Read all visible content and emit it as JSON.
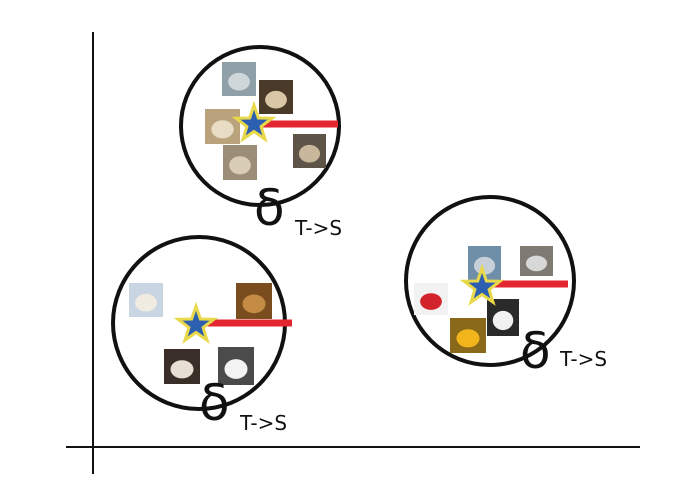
{
  "colors": {
    "background": "#ffffff",
    "axis": "#111111",
    "cluster_outline": "#111111",
    "radius_line": "#e3262f",
    "star_fill": "#2d5fb0",
    "star_outline": "#e8d84a"
  },
  "clusters": [
    {
      "id": "cats",
      "images": [
        {
          "icon": "cat-photo",
          "bg": "#8fa0a8",
          "fg": "#cfd7da"
        },
        {
          "icon": "cat-photo",
          "bg": "#4a3a2a",
          "fg": "#d9c7a6"
        },
        {
          "icon": "cat-photo",
          "bg": "#b9a27c",
          "fg": "#e8dcc4"
        },
        {
          "icon": "cat-photo",
          "bg": "#9b8d78",
          "fg": "#d8ccb6"
        },
        {
          "icon": "cat-photo",
          "bg": "#5f5448",
          "fg": "#c9b79c"
        }
      ],
      "label": {
        "symbol": "δ",
        "subscript": "T->S"
      }
    },
    {
      "id": "dogs",
      "images": [
        {
          "icon": "dog-photo",
          "bg": "#c9d5e2",
          "fg": "#f1ece2"
        },
        {
          "icon": "dog-photo",
          "bg": "#7a4d1e",
          "fg": "#c48b45"
        },
        {
          "icon": "dog-photo",
          "bg": "#3a2f28",
          "fg": "#e7dfd3"
        },
        {
          "icon": "dog-photo",
          "bg": "#4b4b4b",
          "fg": "#f3f3f3"
        }
      ],
      "label": {
        "symbol": "δ",
        "subscript": "T->S"
      }
    },
    {
      "id": "cars",
      "images": [
        {
          "icon": "car-photo",
          "bg": "#6f8fa8",
          "fg": "#c7d0d8"
        },
        {
          "icon": "car-photo",
          "bg": "#7f7a72",
          "fg": "#d8d8d8"
        },
        {
          "icon": "car-photo",
          "bg": "#f2f2f2",
          "fg": "#d3232a"
        },
        {
          "icon": "car-photo",
          "bg": "#2a2a2a",
          "fg": "#f1f1f1"
        },
        {
          "icon": "car-photo",
          "bg": "#8a6a1a",
          "fg": "#f2b51b"
        }
      ],
      "label": {
        "symbol": "δ",
        "subscript": "T->S"
      }
    }
  ]
}
